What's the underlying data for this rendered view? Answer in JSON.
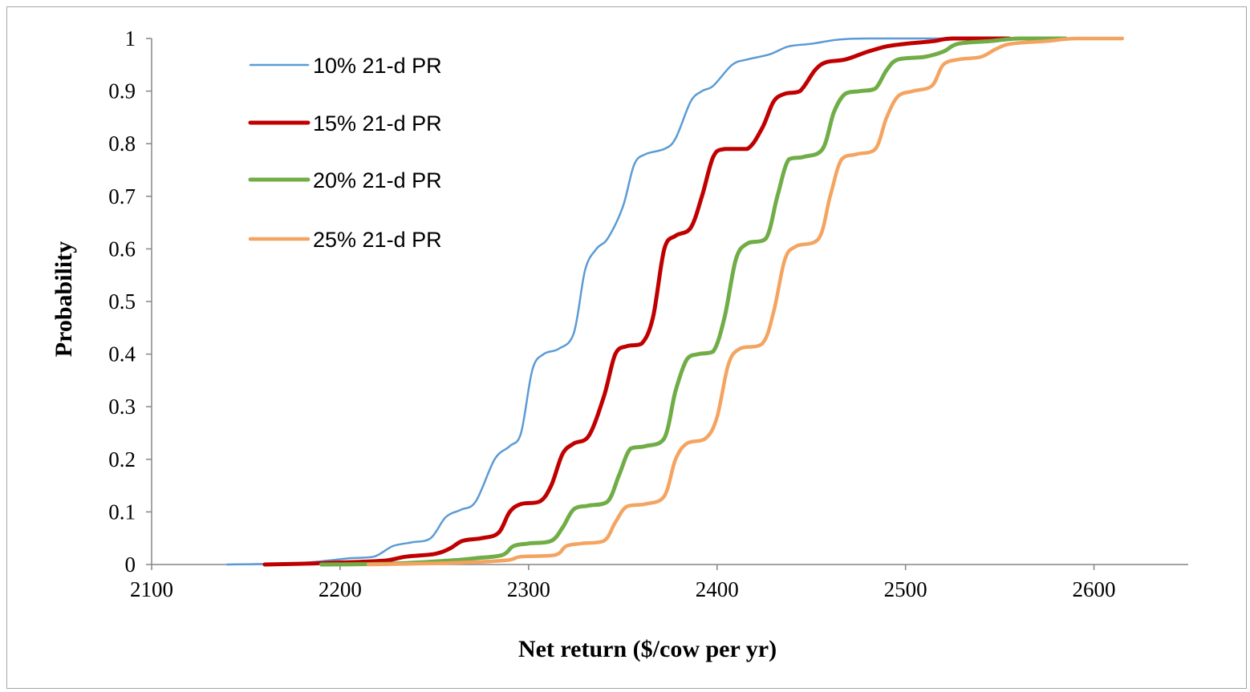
{
  "chart_data": {
    "type": "line",
    "title": "",
    "xlabel": "Net return ($/cow per yr)",
    "ylabel": "Probability",
    "xlim": [
      2100,
      2650
    ],
    "ylim": [
      0,
      1
    ],
    "x_ticks": [
      2100,
      2200,
      2300,
      2400,
      2500,
      2600
    ],
    "y_ticks": [
      0,
      0.1,
      0.2,
      0.3,
      0.4,
      0.5,
      0.6,
      0.7,
      0.8,
      0.9,
      1
    ],
    "y_tick_labels": [
      "0",
      "0.1",
      "0.2",
      "0.3",
      "0.4",
      "0.5",
      "0.6",
      "0.7",
      "0.8",
      "0.9",
      "1"
    ],
    "grid": false,
    "legend_position": "top-left",
    "series": [
      {
        "name": "10% 21-d PR",
        "color": "#5b9bd5",
        "points": [
          [
            2140,
            0
          ],
          [
            2160,
            0.001
          ],
          [
            2180,
            0.003
          ],
          [
            2195,
            0.008
          ],
          [
            2205,
            0.012
          ],
          [
            2218,
            0.015
          ],
          [
            2228,
            0.035
          ],
          [
            2238,
            0.042
          ],
          [
            2248,
            0.05
          ],
          [
            2256,
            0.09
          ],
          [
            2264,
            0.104
          ],
          [
            2272,
            0.12
          ],
          [
            2282,
            0.2
          ],
          [
            2290,
            0.225
          ],
          [
            2296,
            0.25
          ],
          [
            2302,
            0.37
          ],
          [
            2308,
            0.4
          ],
          [
            2316,
            0.41
          ],
          [
            2324,
            0.44
          ],
          [
            2330,
            0.56
          ],
          [
            2336,
            0.6
          ],
          [
            2342,
            0.62
          ],
          [
            2350,
            0.68
          ],
          [
            2356,
            0.76
          ],
          [
            2362,
            0.78
          ],
          [
            2372,
            0.79
          ],
          [
            2378,
            0.81
          ],
          [
            2386,
            0.88
          ],
          [
            2392,
            0.9
          ],
          [
            2398,
            0.91
          ],
          [
            2408,
            0.95
          ],
          [
            2416,
            0.96
          ],
          [
            2428,
            0.97
          ],
          [
            2438,
            0.985
          ],
          [
            2450,
            0.99
          ],
          [
            2465,
            0.998
          ],
          [
            2480,
            1
          ],
          [
            2520,
            1
          ]
        ]
      },
      {
        "name": "15% 21-d PR",
        "color": "#c00000",
        "points": [
          [
            2160,
            0
          ],
          [
            2185,
            0.002
          ],
          [
            2210,
            0.005
          ],
          [
            2225,
            0.008
          ],
          [
            2235,
            0.015
          ],
          [
            2250,
            0.02
          ],
          [
            2258,
            0.03
          ],
          [
            2265,
            0.045
          ],
          [
            2275,
            0.05
          ],
          [
            2284,
            0.06
          ],
          [
            2290,
            0.1
          ],
          [
            2296,
            0.115
          ],
          [
            2306,
            0.12
          ],
          [
            2312,
            0.15
          ],
          [
            2318,
            0.21
          ],
          [
            2324,
            0.23
          ],
          [
            2332,
            0.245
          ],
          [
            2340,
            0.32
          ],
          [
            2346,
            0.4
          ],
          [
            2352,
            0.415
          ],
          [
            2360,
            0.42
          ],
          [
            2366,
            0.47
          ],
          [
            2372,
            0.6
          ],
          [
            2378,
            0.625
          ],
          [
            2386,
            0.64
          ],
          [
            2392,
            0.7
          ],
          [
            2398,
            0.775
          ],
          [
            2404,
            0.79
          ],
          [
            2416,
            0.79
          ],
          [
            2424,
            0.83
          ],
          [
            2430,
            0.88
          ],
          [
            2436,
            0.895
          ],
          [
            2444,
            0.9
          ],
          [
            2452,
            0.94
          ],
          [
            2458,
            0.955
          ],
          [
            2468,
            0.96
          ],
          [
            2480,
            0.975
          ],
          [
            2490,
            0.985
          ],
          [
            2500,
            0.99
          ],
          [
            2515,
            0.995
          ],
          [
            2525,
            1
          ],
          [
            2555,
            1
          ]
        ]
      },
      {
        "name": "20% 21-d PR",
        "color": "#70ad47",
        "points": [
          [
            2190,
            0
          ],
          [
            2230,
            0.002
          ],
          [
            2260,
            0.008
          ],
          [
            2272,
            0.012
          ],
          [
            2286,
            0.018
          ],
          [
            2292,
            0.035
          ],
          [
            2300,
            0.04
          ],
          [
            2312,
            0.045
          ],
          [
            2318,
            0.07
          ],
          [
            2324,
            0.105
          ],
          [
            2332,
            0.112
          ],
          [
            2342,
            0.12
          ],
          [
            2348,
            0.17
          ],
          [
            2354,
            0.22
          ],
          [
            2362,
            0.225
          ],
          [
            2372,
            0.24
          ],
          [
            2378,
            0.33
          ],
          [
            2384,
            0.39
          ],
          [
            2390,
            0.4
          ],
          [
            2398,
            0.405
          ],
          [
            2404,
            0.47
          ],
          [
            2410,
            0.58
          ],
          [
            2416,
            0.61
          ],
          [
            2426,
            0.62
          ],
          [
            2432,
            0.7
          ],
          [
            2438,
            0.77
          ],
          [
            2446,
            0.775
          ],
          [
            2456,
            0.79
          ],
          [
            2462,
            0.86
          ],
          [
            2468,
            0.895
          ],
          [
            2476,
            0.9
          ],
          [
            2484,
            0.905
          ],
          [
            2490,
            0.94
          ],
          [
            2496,
            0.96
          ],
          [
            2510,
            0.965
          ],
          [
            2520,
            0.975
          ],
          [
            2528,
            0.99
          ],
          [
            2545,
            0.995
          ],
          [
            2560,
            1
          ],
          [
            2585,
            1
          ]
        ]
      },
      {
        "name": "25% 21-d PR",
        "color": "#f4a460",
        "points": [
          [
            2215,
            0
          ],
          [
            2260,
            0.003
          ],
          [
            2288,
            0.008
          ],
          [
            2296,
            0.015
          ],
          [
            2314,
            0.018
          ],
          [
            2320,
            0.035
          ],
          [
            2328,
            0.04
          ],
          [
            2340,
            0.045
          ],
          [
            2346,
            0.08
          ],
          [
            2352,
            0.11
          ],
          [
            2362,
            0.115
          ],
          [
            2372,
            0.13
          ],
          [
            2378,
            0.2
          ],
          [
            2384,
            0.23
          ],
          [
            2394,
            0.24
          ],
          [
            2400,
            0.28
          ],
          [
            2406,
            0.38
          ],
          [
            2412,
            0.41
          ],
          [
            2424,
            0.42
          ],
          [
            2430,
            0.48
          ],
          [
            2436,
            0.58
          ],
          [
            2442,
            0.605
          ],
          [
            2454,
            0.62
          ],
          [
            2460,
            0.7
          ],
          [
            2466,
            0.77
          ],
          [
            2474,
            0.78
          ],
          [
            2484,
            0.79
          ],
          [
            2490,
            0.85
          ],
          [
            2496,
            0.89
          ],
          [
            2504,
            0.9
          ],
          [
            2514,
            0.91
          ],
          [
            2520,
            0.95
          ],
          [
            2528,
            0.96
          ],
          [
            2540,
            0.965
          ],
          [
            2548,
            0.98
          ],
          [
            2556,
            0.99
          ],
          [
            2575,
            0.995
          ],
          [
            2590,
            1
          ],
          [
            2615,
            1
          ]
        ]
      }
    ]
  }
}
